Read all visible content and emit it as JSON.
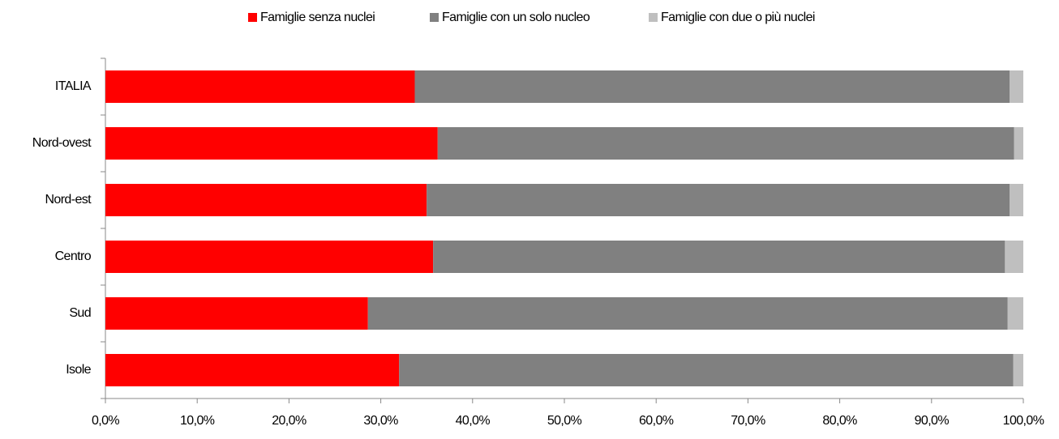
{
  "chart_data": {
    "type": "stacked-bar-horizontal",
    "categories": [
      "ITALIA",
      "Nord-ovest",
      "Nord-est",
      "Centro",
      "Sud",
      "Isole"
    ],
    "series": [
      {
        "name": "Famiglie senza nuclei",
        "color": "#ff0000",
        "values": [
          33.7,
          36.2,
          35.0,
          35.7,
          28.6,
          32.0
        ]
      },
      {
        "name": "Famiglie con un solo nucleo",
        "color": "#808080",
        "values": [
          64.8,
          62.8,
          63.5,
          62.3,
          69.7,
          66.9
        ]
      },
      {
        "name": "Famiglie con due o più nuclei",
        "color": "#bfbfbf",
        "values": [
          1.5,
          1.0,
          1.5,
          2.0,
          1.7,
          1.1
        ]
      }
    ],
    "xlim": [
      0,
      100
    ],
    "xticks": [
      {
        "value": 0,
        "label": "0,0%"
      },
      {
        "value": 10,
        "label": "10,0%"
      },
      {
        "value": 20,
        "label": "20,0%"
      },
      {
        "value": 30,
        "label": "30,0%"
      },
      {
        "value": 40,
        "label": "40,0%"
      },
      {
        "value": 50,
        "label": "50,0%"
      },
      {
        "value": 60,
        "label": "60,0%"
      },
      {
        "value": 70,
        "label": "70,0%"
      },
      {
        "value": 80,
        "label": "80,0%"
      },
      {
        "value": 90,
        "label": "90,0%"
      },
      {
        "value": 100,
        "label": "100,0%"
      }
    ],
    "legend": "top",
    "grid": false
  }
}
